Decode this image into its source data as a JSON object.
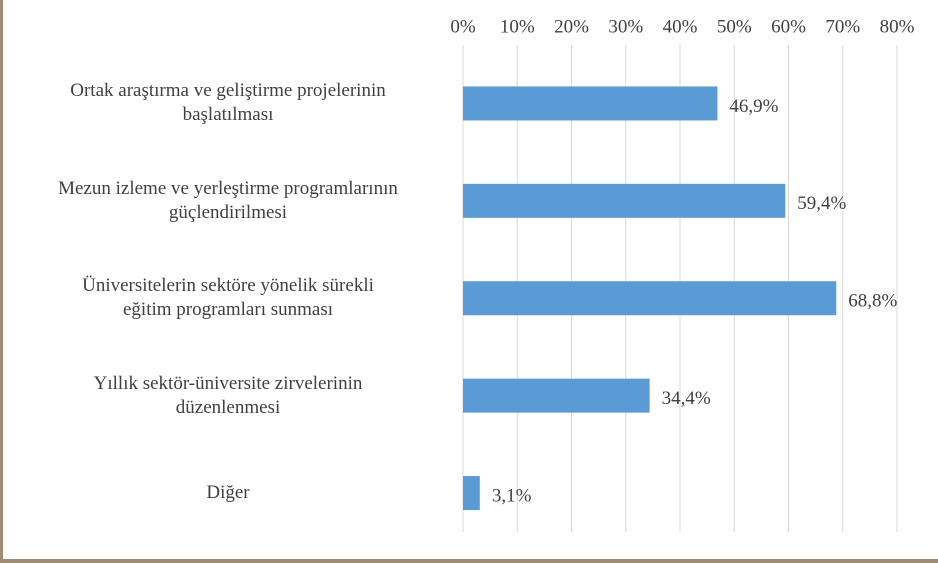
{
  "chart_data": {
    "type": "bar",
    "orientation": "horizontal",
    "categories": [
      "Ortak araştırma ve geliştirme projelerinin\nbaşlatılması",
      "Mezun izleme ve yerleştirme programlarının\ngüçlendirilmesi",
      "Üniversitelerin sektöre yönelik sürekli\neğitim programları sunması",
      "Yıllık sektör-üniversite zirvelerinin\ndüzenlenmesi",
      "Diğer"
    ],
    "values": [
      46.9,
      59.4,
      68.8,
      34.4,
      3.1
    ],
    "value_labels": [
      "46,9%",
      "59,4%",
      "68,8%",
      "34,4%",
      "3,1%"
    ],
    "color": "#5b9bd5",
    "xlim": [
      0,
      80
    ],
    "xticks": [
      {
        "value": 0,
        "label": "0%"
      },
      {
        "value": 10,
        "label": "10%"
      },
      {
        "value": 20,
        "label": "20%"
      },
      {
        "value": 30,
        "label": "30%"
      },
      {
        "value": 40,
        "label": "40%"
      },
      {
        "value": 50,
        "label": "50%"
      },
      {
        "value": 60,
        "label": "60%"
      },
      {
        "value": 70,
        "label": "70%"
      },
      {
        "value": 80,
        "label": "80%"
      }
    ],
    "grid": true
  }
}
